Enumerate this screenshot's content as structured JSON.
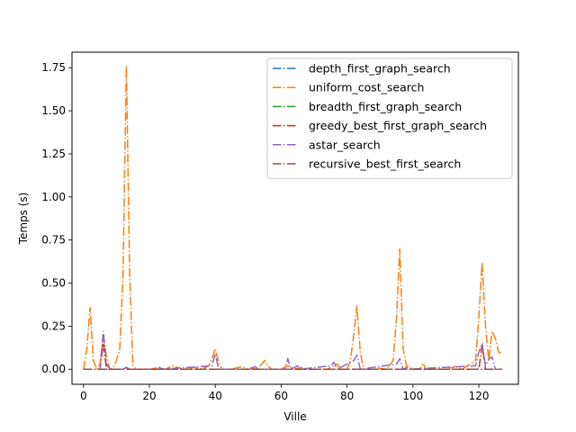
{
  "chart_data": {
    "type": "line",
    "title": "",
    "xlabel": "Ville",
    "ylabel": "Temps (s)",
    "xlim": [
      -3.5,
      132
    ],
    "ylim": [
      -0.0875,
      1.84
    ],
    "xticks": [
      0,
      20,
      40,
      60,
      80,
      100,
      120
    ],
    "yticks": [
      0.0,
      0.25,
      0.5,
      0.75,
      1.0,
      1.25,
      1.5,
      1.75
    ],
    "ytick_labels": [
      "0.00",
      "0.25",
      "0.50",
      "0.75",
      "1.00",
      "1.25",
      "1.50",
      "1.75"
    ],
    "grid": false,
    "legend_position": "top-right",
    "line_style": "dash-dot",
    "series": [
      {
        "name": "depth_first_graph_search",
        "color": "#1f77b4",
        "points": [
          [
            0,
            0
          ],
          [
            20,
            0
          ],
          [
            40,
            0
          ],
          [
            60,
            0
          ],
          [
            80,
            0
          ],
          [
            100,
            0
          ],
          [
            127,
            0
          ]
        ]
      },
      {
        "name": "uniform_cost_search",
        "color": "#ff7f0e",
        "points": [
          [
            0,
            0
          ],
          [
            1,
            0.12
          ],
          [
            2,
            0.36
          ],
          [
            3,
            0.05
          ],
          [
            4,
            0.0
          ],
          [
            5,
            0.03
          ],
          [
            6,
            0.19
          ],
          [
            7,
            0.07
          ],
          [
            8,
            0.0
          ],
          [
            9,
            0.01
          ],
          [
            10,
            0.05
          ],
          [
            11,
            0.12
          ],
          [
            12,
            0.55
          ],
          [
            13,
            1.76
          ],
          [
            14,
            0.55
          ],
          [
            15,
            0.02
          ],
          [
            16,
            0.0
          ],
          [
            20,
            0.0
          ],
          [
            23,
            0.01
          ],
          [
            25,
            0.0
          ],
          [
            27,
            0.02
          ],
          [
            30,
            0.0
          ],
          [
            34,
            0.01
          ],
          [
            36,
            0.0
          ],
          [
            38,
            0.02
          ],
          [
            39,
            0.06
          ],
          [
            40,
            0.12
          ],
          [
            41,
            0.04
          ],
          [
            42,
            0.0
          ],
          [
            45,
            0.0
          ],
          [
            48,
            0.015
          ],
          [
            50,
            0.0
          ],
          [
            53,
            0.005
          ],
          [
            55,
            0.05
          ],
          [
            56,
            0.02
          ],
          [
            57,
            0.0
          ],
          [
            60,
            0.0
          ],
          [
            62,
            0.02
          ],
          [
            64,
            0.0
          ],
          [
            66,
            0.01
          ],
          [
            68,
            0.0
          ],
          [
            70,
            0.0
          ],
          [
            74,
            0.0
          ],
          [
            76,
            0.02
          ],
          [
            77,
            0.03
          ],
          [
            78,
            0.0
          ],
          [
            80,
            0.0
          ],
          [
            81,
            0.05
          ],
          [
            82,
            0.2
          ],
          [
            83,
            0.37
          ],
          [
            84,
            0.1
          ],
          [
            85,
            0.0
          ],
          [
            88,
            0.0
          ],
          [
            90,
            0.005
          ],
          [
            92,
            0.0
          ],
          [
            94,
            0.05
          ],
          [
            95,
            0.3
          ],
          [
            96,
            0.7
          ],
          [
            97,
            0.12
          ],
          [
            98,
            0.02
          ],
          [
            100,
            0.0
          ],
          [
            102,
            0.0
          ],
          [
            103,
            0.035
          ],
          [
            104,
            0.0
          ],
          [
            110,
            0.0
          ],
          [
            113,
            0.015
          ],
          [
            115,
            0.0
          ],
          [
            119,
            0.05
          ],
          [
            120,
            0.3
          ],
          [
            121,
            0.62
          ],
          [
            122,
            0.25
          ],
          [
            123,
            0.05
          ],
          [
            124,
            0.22
          ],
          [
            125,
            0.18
          ],
          [
            126,
            0.1
          ],
          [
            127,
            0.09
          ]
        ]
      },
      {
        "name": "breadth_first_graph_search",
        "color": "#2ca02c",
        "points": [
          [
            0,
            0
          ],
          [
            20,
            0
          ],
          [
            40,
            0
          ],
          [
            60,
            0
          ],
          [
            80,
            0
          ],
          [
            100,
            0
          ],
          [
            127,
            0
          ]
        ]
      },
      {
        "name": "greedy_best_first_graph_search",
        "color": "#d62728",
        "points": [
          [
            0,
            0
          ],
          [
            5,
            0
          ],
          [
            6,
            0.15
          ],
          [
            7,
            0.0
          ],
          [
            12,
            0
          ],
          [
            13,
            0.01
          ],
          [
            14,
            0
          ],
          [
            40,
            0
          ],
          [
            80,
            0
          ],
          [
            120,
            0
          ],
          [
            121,
            0.14
          ],
          [
            122,
            0.0
          ],
          [
            127,
            0
          ]
        ]
      },
      {
        "name": "astar_search",
        "color": "#9467bd",
        "points": [
          [
            0,
            0
          ],
          [
            5,
            0.0
          ],
          [
            6,
            0.22
          ],
          [
            7,
            0.03
          ],
          [
            8,
            0.0
          ],
          [
            12,
            0.0
          ],
          [
            13,
            0.01
          ],
          [
            14,
            0.0
          ],
          [
            22,
            0.0
          ],
          [
            23,
            0.01
          ],
          [
            24,
            0.0
          ],
          [
            39,
            0.02
          ],
          [
            40,
            0.09
          ],
          [
            41,
            0.0
          ],
          [
            50,
            0.0
          ],
          [
            52,
            0.015
          ],
          [
            53,
            0.0
          ],
          [
            61,
            0.0
          ],
          [
            62,
            0.06
          ],
          [
            63,
            0.0
          ],
          [
            65,
            0.02
          ],
          [
            66,
            0.0
          ],
          [
            75,
            0.02
          ],
          [
            76,
            0.04
          ],
          [
            77,
            0.0
          ],
          [
            82,
            0.05
          ],
          [
            83,
            0.08
          ],
          [
            84,
            0.0
          ],
          [
            95,
            0.03
          ],
          [
            96,
            0.06
          ],
          [
            97,
            0.0
          ],
          [
            98,
            0.01
          ],
          [
            99,
            0.0
          ],
          [
            119,
            0.02
          ],
          [
            120,
            0.1
          ],
          [
            121,
            0.15
          ],
          [
            122,
            0.02
          ],
          [
            123,
            0.06
          ],
          [
            124,
            0.07
          ],
          [
            125,
            0.0
          ],
          [
            127,
            0.0
          ]
        ]
      },
      {
        "name": "recursive_best_first_search",
        "color": "#8c564b",
        "points": [
          [
            0,
            0
          ],
          [
            20,
            0
          ],
          [
            40,
            0
          ],
          [
            60,
            0
          ],
          [
            80,
            0
          ],
          [
            100,
            0
          ],
          [
            127,
            0
          ]
        ]
      }
    ]
  }
}
